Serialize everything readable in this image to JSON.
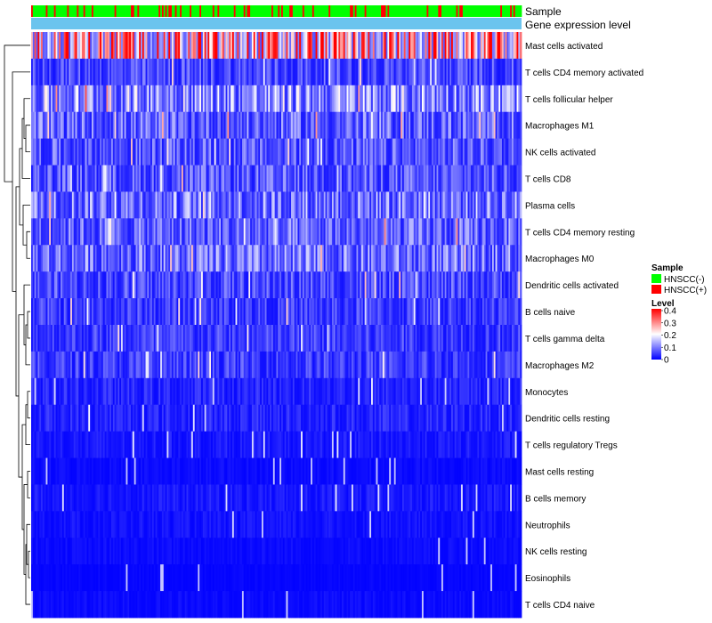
{
  "chart_data": {
    "type": "heatmap",
    "title": "",
    "n_samples": 300,
    "annotation_tracks": [
      {
        "id": "sample",
        "label": "Sample"
      },
      {
        "id": "gene",
        "label": "Gene expression level"
      }
    ],
    "rows": [
      {
        "label": "Mast cells activated",
        "mean": 0.25
      },
      {
        "label": "T cells CD4 memory activated",
        "mean": 0.06
      },
      {
        "label": "T cells follicular helper",
        "mean": 0.12
      },
      {
        "label": "Macrophages M1",
        "mean": 0.08
      },
      {
        "label": "NK cells activated",
        "mean": 0.07
      },
      {
        "label": "T cells CD8",
        "mean": 0.07
      },
      {
        "label": "Plasma cells",
        "mean": 0.1
      },
      {
        "label": "T cells CD4 memory resting",
        "mean": 0.08
      },
      {
        "label": "Macrophages M0",
        "mean": 0.09
      },
      {
        "label": "Dendritic cells activated",
        "mean": 0.06
      },
      {
        "label": "B cells naive",
        "mean": 0.05
      },
      {
        "label": "T cells gamma delta",
        "mean": 0.05
      },
      {
        "label": "Macrophages M2",
        "mean": 0.05
      },
      {
        "label": "Monocytes",
        "mean": 0.03
      },
      {
        "label": "Dendritic cells resting",
        "mean": 0.03
      },
      {
        "label": "T cells regulatory  Tregs",
        "mean": 0.02
      },
      {
        "label": "Mast cells resting",
        "mean": 0.01
      },
      {
        "label": "B cells memory",
        "mean": 0.02
      },
      {
        "label": "Neutrophils",
        "mean": 0.015
      },
      {
        "label": "NK cells resting",
        "mean": 0.01
      },
      {
        "label": "Eosinophils",
        "mean": 0.005
      },
      {
        "label": "T cells CD4 naive",
        "mean": 0.01
      }
    ],
    "sample_group_legend": {
      "title": "Sample",
      "entries": [
        {
          "label": "HNSCC(-)",
          "color": "#00ff00"
        },
        {
          "label": "HNSCC(+)",
          "color": "#ff0000"
        }
      ]
    },
    "color_scale": {
      "title": "Level",
      "domain": [
        0,
        0.4
      ],
      "ticks": [
        "0.4",
        "0.3",
        "0.2",
        "0.1",
        "0"
      ],
      "colors": [
        "#0000ff",
        "#ffffff",
        "#ff0000"
      ]
    },
    "gene_track_color": "#6bc4ee",
    "dendrogram": "left"
  }
}
